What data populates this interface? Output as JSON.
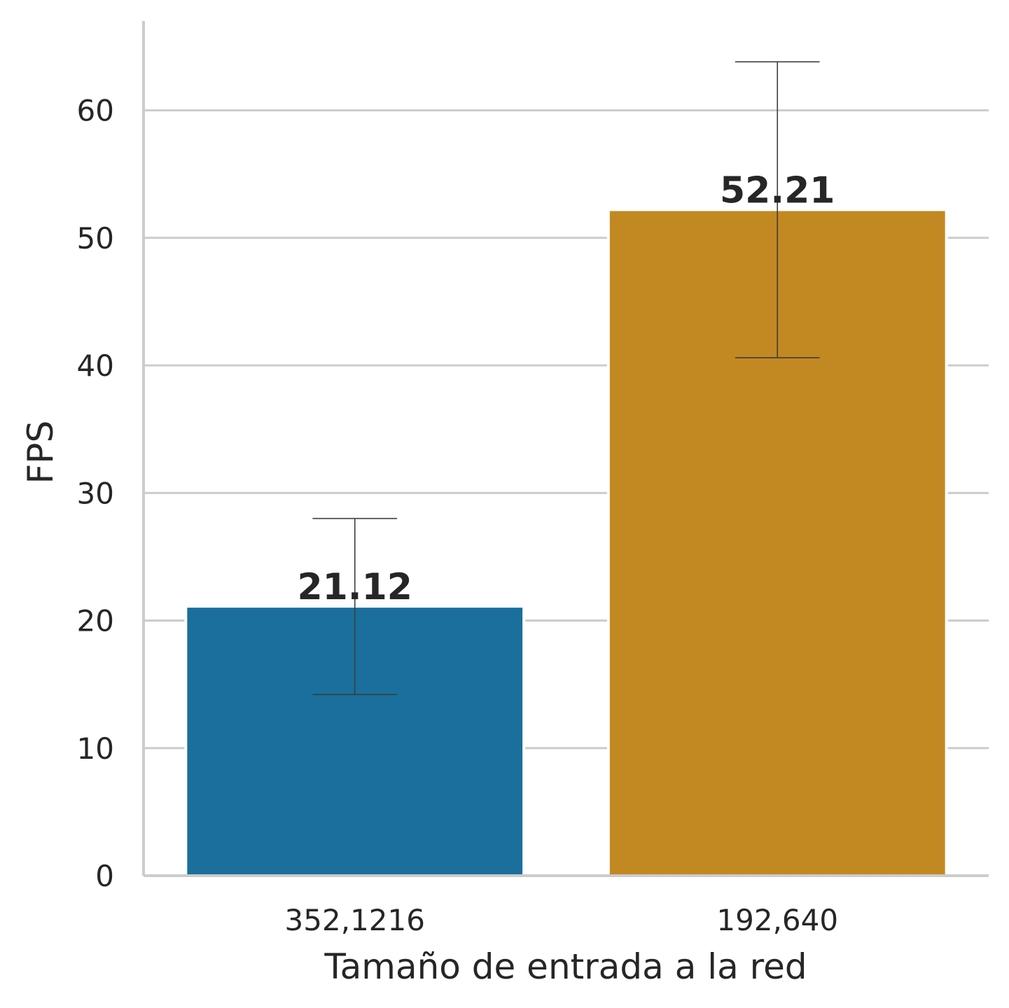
{
  "chart_data": {
    "type": "bar",
    "categories": [
      "352,1216",
      "192,640"
    ],
    "values": [
      21.12,
      52.21
    ],
    "value_labels": [
      "21.12",
      "52.21"
    ],
    "error_bars": [
      {
        "low": 14.2,
        "high": 28.0
      },
      {
        "low": 40.6,
        "high": 63.8
      }
    ],
    "colors": [
      "#1a6f9c",
      "#c28822"
    ],
    "xlabel": "Tamaño de entrada a la red",
    "ylabel": "FPS",
    "ylim": [
      0,
      67
    ],
    "yticks": [
      0,
      10,
      20,
      30,
      40,
      50,
      60
    ],
    "grid": "horizontal",
    "grid_color": "#cccccc"
  }
}
